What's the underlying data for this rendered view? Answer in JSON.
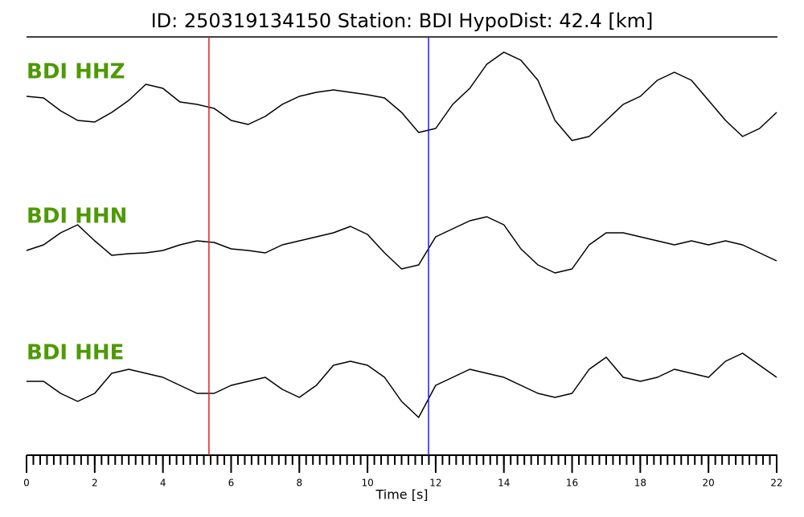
{
  "chart_data": {
    "type": "seismogram",
    "title": "ID: 250319134150   Station: BDI   HypoDist:    42.4 [km]",
    "xlabel": "Time [s]",
    "x": [
      0,
      0.5,
      1,
      1.5,
      2,
      2.5,
      3,
      3.5,
      4,
      4.5,
      5,
      5.5,
      6,
      6.5,
      7,
      7.5,
      8,
      8.5,
      9,
      9.5,
      10,
      10.5,
      11,
      11.5,
      12,
      12.5,
      13,
      13.5,
      14,
      14.5,
      15,
      15.5,
      16,
      16.5,
      17,
      17.5,
      18,
      18.5,
      19,
      19.5,
      20,
      20.5,
      21,
      21.5,
      22
    ],
    "xlim": [
      0,
      22
    ],
    "xticks": [
      0,
      2,
      4,
      6,
      8,
      10,
      12,
      14,
      16,
      18,
      20,
      22
    ],
    "xminorticks": [
      0,
      0.2,
      0.4,
      0.6,
      0.8,
      1,
      1.2,
      1.4,
      1.6,
      1.8,
      2,
      2.2,
      2.4,
      2.6,
      2.8,
      3,
      3.2,
      3.4,
      3.6,
      3.8,
      4,
      4.2,
      4.4,
      4.6,
      4.8,
      5,
      5.2,
      5.4,
      5.6,
      5.8,
      6,
      6.2,
      6.4,
      6.6,
      6.8,
      7,
      7.2,
      7.4,
      7.6,
      7.8,
      8,
      8.2,
      8.4,
      8.6,
      8.8,
      9,
      9.2,
      9.4,
      9.6,
      9.8,
      10,
      10.2,
      10.4,
      10.6,
      10.8,
      11,
      11.2,
      11.4,
      11.6,
      11.8,
      12,
      12.2,
      12.4,
      12.6,
      12.8,
      13,
      13.2,
      13.4,
      13.6,
      13.8,
      14,
      14.2,
      14.4,
      14.6,
      14.8,
      15,
      15.2,
      15.4,
      15.6,
      15.8,
      16,
      16.2,
      16.4,
      16.6,
      16.8,
      17,
      17.2,
      17.4,
      17.6,
      17.8,
      18,
      18.2,
      18.4,
      18.6,
      18.8,
      19,
      19.2,
      19.4,
      19.6,
      19.8,
      20,
      20.2,
      20.4,
      20.6,
      20.8,
      21,
      21.2,
      21.4,
      21.6,
      21.8,
      22
    ],
    "ylim": [
      -80,
      80
    ],
    "line_color": "#000000",
    "label_color": "#4e9a06",
    "vlines": [
      {
        "x": 5.35,
        "color": "#e02020"
      },
      {
        "x": 11.79,
        "color": "#1a1aff"
      }
    ],
    "series": [
      {
        "name": "BDI HHZ",
        "values": [
          10,
          8,
          -8,
          -20,
          -22,
          -10,
          5,
          25,
          20,
          3,
          0,
          -5,
          -20,
          -25,
          -15,
          0,
          10,
          15,
          18,
          15,
          12,
          8,
          -10,
          -35,
          -30,
          0,
          20,
          50,
          65,
          55,
          30,
          -20,
          -45,
          -40,
          -20,
          0,
          10,
          30,
          40,
          30,
          5,
          -20,
          -40,
          -30,
          -10
        ]
      },
      {
        "name": "BDI HHN",
        "values": [
          -2,
          5,
          20,
          30,
          10,
          -8,
          -6,
          -5,
          -2,
          5,
          10,
          8,
          0,
          -2,
          -5,
          5,
          10,
          15,
          20,
          28,
          18,
          -5,
          -25,
          -20,
          15,
          25,
          35,
          40,
          30,
          0,
          -20,
          -30,
          -25,
          5,
          20,
          20,
          15,
          10,
          5,
          10,
          5,
          10,
          5,
          -5,
          -15
        ]
      },
      {
        "name": "BDI HHE",
        "values": [
          5,
          5,
          -10,
          -20,
          -10,
          15,
          20,
          15,
          10,
          0,
          -10,
          -10,
          0,
          5,
          10,
          -5,
          -15,
          0,
          25,
          30,
          25,
          10,
          -20,
          -40,
          0,
          10,
          20,
          15,
          10,
          0,
          -10,
          -15,
          -10,
          20,
          35,
          10,
          5,
          10,
          20,
          15,
          10,
          30,
          40,
          25,
          10
        ]
      }
    ]
  }
}
